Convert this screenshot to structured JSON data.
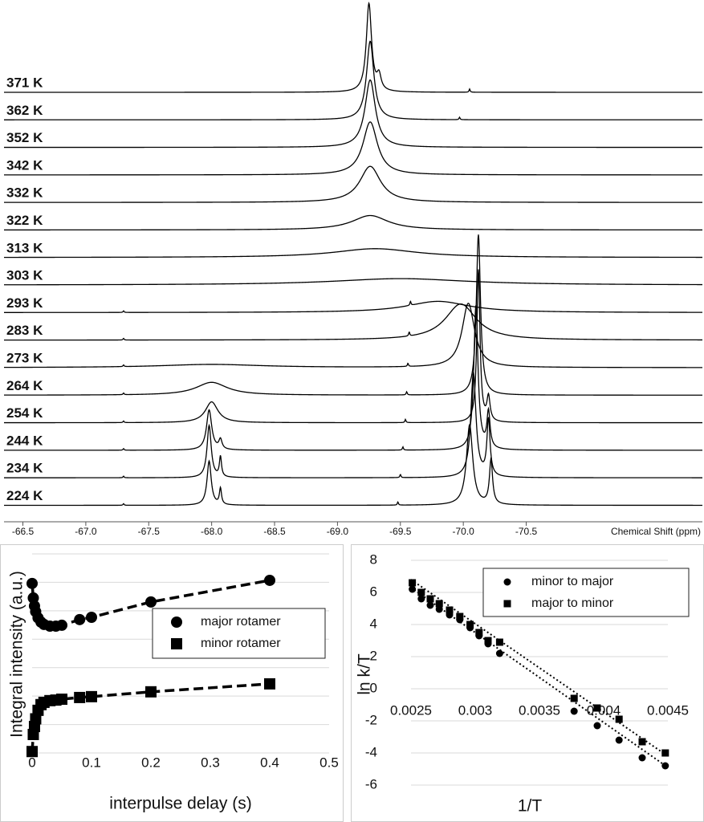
{
  "chart_data": [
    {
      "type": "spectra",
      "xlabel": "Chemical Shift (ppm)",
      "xlim": [
        -66.35,
        -71.9
      ],
      "xticks": [
        -66.5,
        {
          "value": -67,
          "label": "-67.0"
        },
        -67.5,
        {
          "value": -68,
          "label": "-68.0"
        },
        -68.5,
        {
          "value": -69,
          "label": "-69.0"
        },
        -69.5,
        {
          "value": -70,
          "label": "-70.0"
        },
        -70.5
      ],
      "color": "#000000",
      "series": [
        {
          "name": "371 K",
          "peaks": [
            [
              -69.25,
              110,
              0.05
            ],
            [
              -69.33,
              18,
              0.04
            ],
            [
              -70.05,
              4,
              0.01
            ]
          ]
        },
        {
          "name": "362 K",
          "peaks": [
            [
              -69.26,
              98,
              0.07
            ],
            [
              -69.97,
              3,
              0.01
            ]
          ]
        },
        {
          "name": "352 K",
          "peaks": [
            [
              -69.26,
              84,
              0.1
            ]
          ]
        },
        {
          "name": "342 K",
          "peaks": [
            [
              -69.26,
              66,
              0.14
            ]
          ]
        },
        {
          "name": "332 K",
          "peaks": [
            [
              -69.26,
              45,
              0.2
            ]
          ]
        },
        {
          "name": "322 K",
          "peaks": [
            [
              -69.26,
              18,
              0.35
            ]
          ]
        },
        {
          "name": "313 K",
          "peaks": [
            [
              -69.3,
              11,
              0.8
            ]
          ]
        },
        {
          "name": "303 K",
          "peaks": [
            [
              -69.5,
              8,
              1.3
            ]
          ]
        },
        {
          "name": "293 K",
          "peaks": [
            [
              -69.8,
              14,
              0.6
            ],
            [
              -69.58,
              5,
              0.01
            ],
            [
              -67.3,
              2,
              0.01
            ]
          ]
        },
        {
          "name": "283 K",
          "peaks": [
            [
              -69.98,
              45,
              0.3
            ],
            [
              -69.57,
              5,
              0.01
            ],
            [
              -67.3,
              2,
              0.01
            ]
          ]
        },
        {
          "name": "273 K",
          "peaks": [
            [
              -70.04,
              80,
              0.12
            ],
            [
              -69.56,
              4,
              0.01
            ],
            [
              -67.3,
              2,
              0.01
            ],
            [
              -68.0,
              4,
              1.0
            ]
          ]
        },
        {
          "name": "264 K",
          "peaks": [
            [
              -70.12,
              200,
              0.04
            ],
            [
              -68.0,
              16,
              0.3
            ],
            [
              -69.55,
              4,
              0.01
            ],
            [
              -67.3,
              2,
              0.01
            ]
          ]
        },
        {
          "name": "254 K",
          "peaks": [
            [
              -70.12,
              190,
              0.03
            ],
            [
              -70.2,
              30,
              0.03
            ],
            [
              -68.0,
              26,
              0.12
            ],
            [
              -69.54,
              4,
              0.01
            ],
            [
              -67.3,
              2,
              0.01
            ]
          ]
        },
        {
          "name": "244 K",
          "peaks": [
            [
              -70.1,
              180,
              0.04
            ],
            [
              -70.2,
              45,
              0.03
            ],
            [
              -67.98,
              50,
              0.05
            ],
            [
              -68.07,
              12,
              0.03
            ],
            [
              -69.52,
              4,
              0.01
            ],
            [
              -67.3,
              2,
              0.01
            ]
          ]
        },
        {
          "name": "234 K",
          "peaks": [
            [
              -70.08,
              130,
              0.05
            ],
            [
              -70.2,
              70,
              0.03
            ],
            [
              -67.98,
              65,
              0.04
            ],
            [
              -68.07,
              25,
              0.02
            ],
            [
              -69.5,
              4,
              0.01
            ],
            [
              -67.3,
              2,
              0.01
            ]
          ]
        },
        {
          "name": "224 K",
          "peaks": [
            [
              -70.05,
              100,
              0.06
            ],
            [
              -70.22,
              55,
              0.03
            ],
            [
              -67.98,
              55,
              0.04
            ],
            [
              -68.07,
              20,
              0.02
            ],
            [
              -69.48,
              4,
              0.01
            ],
            [
              -67.3,
              2,
              0.01
            ]
          ]
        }
      ]
    },
    {
      "type": "scatter",
      "xlabel": "interpulse delay (s)",
      "ylabel": "Integral intensity (a.u.)",
      "xlim": [
        0,
        0.5
      ],
      "xticks": [
        0,
        0.1,
        0.2,
        0.3,
        0.4,
        0.5
      ],
      "ylim": [
        0,
        7
      ],
      "grid_y": [
        0,
        1,
        2,
        3,
        4,
        5,
        6,
        7
      ],
      "line_style": "dashed",
      "series": [
        {
          "name": "major rotamer",
          "marker": "circle",
          "color": "#000000",
          "x": [
            0,
            0.002,
            0.004,
            0.006,
            0.01,
            0.015,
            0.02,
            0.03,
            0.04,
            0.05,
            0.08,
            0.1,
            0.2,
            0.4
          ],
          "values": [
            5.96,
            5.45,
            5.17,
            4.97,
            4.75,
            4.6,
            4.52,
            4.46,
            4.46,
            4.49,
            4.69,
            4.77,
            5.31,
            6.07
          ]
        },
        {
          "name": "minor rotamer",
          "marker": "square",
          "color": "#000000",
          "x": [
            0,
            0.002,
            0.004,
            0.006,
            0.01,
            0.015,
            0.02,
            0.03,
            0.04,
            0.05,
            0.08,
            0.1,
            0.2,
            0.4
          ],
          "values": [
            0.05,
            0.65,
            0.93,
            1.2,
            1.5,
            1.7,
            1.78,
            1.84,
            1.86,
            1.89,
            1.95,
            1.98,
            2.15,
            2.43
          ]
        }
      ]
    },
    {
      "type": "scatter",
      "xlabel": "1/T",
      "ylabel": "ln k/T",
      "xlim": [
        0.0025,
        0.0045
      ],
      "xticks": [
        0.0025,
        0.003,
        0.0035,
        0.004,
        0.0045
      ],
      "ylim": [
        -6,
        8
      ],
      "yticks": [
        -6,
        -4,
        -2,
        0,
        2,
        4,
        6,
        8
      ],
      "grid_y": [
        -6,
        -4,
        -2,
        0,
        2,
        4,
        6,
        8
      ],
      "line_style": "dotted",
      "series": [
        {
          "name": "minor to major",
          "marker": "circle",
          "color": "#000000",
          "x": [
            0.00251,
            0.00258,
            0.00265,
            0.00272,
            0.0028,
            0.00288,
            0.00296,
            0.00303,
            0.0031,
            0.00319,
            0.00377,
            0.00395,
            0.00412,
            0.0043,
            0.00448
          ],
          "values": [
            6.2,
            5.6,
            5.2,
            4.95,
            4.6,
            4.3,
            3.8,
            3.3,
            2.8,
            2.2,
            -1.4,
            -2.3,
            -3.2,
            -4.3,
            -4.8
          ],
          "trend_x": [
            0.0025,
            0.0045
          ],
          "trend_y": [
            6.3,
            -4.9
          ]
        },
        {
          "name": "major to minor",
          "marker": "square",
          "color": "#000000",
          "x": [
            0.00251,
            0.00258,
            0.00265,
            0.00272,
            0.0028,
            0.00288,
            0.00296,
            0.00303,
            0.0031,
            0.00319,
            0.00377,
            0.00395,
            0.00412,
            0.0043,
            0.00448
          ],
          "values": [
            6.6,
            6.0,
            5.6,
            5.3,
            4.9,
            4.5,
            4.0,
            3.5,
            3.0,
            2.9,
            -0.6,
            -1.2,
            -1.9,
            -3.3,
            -4.0
          ],
          "trend_x": [
            0.0025,
            0.0045
          ],
          "trend_y": [
            6.8,
            -4.2
          ]
        }
      ]
    }
  ]
}
